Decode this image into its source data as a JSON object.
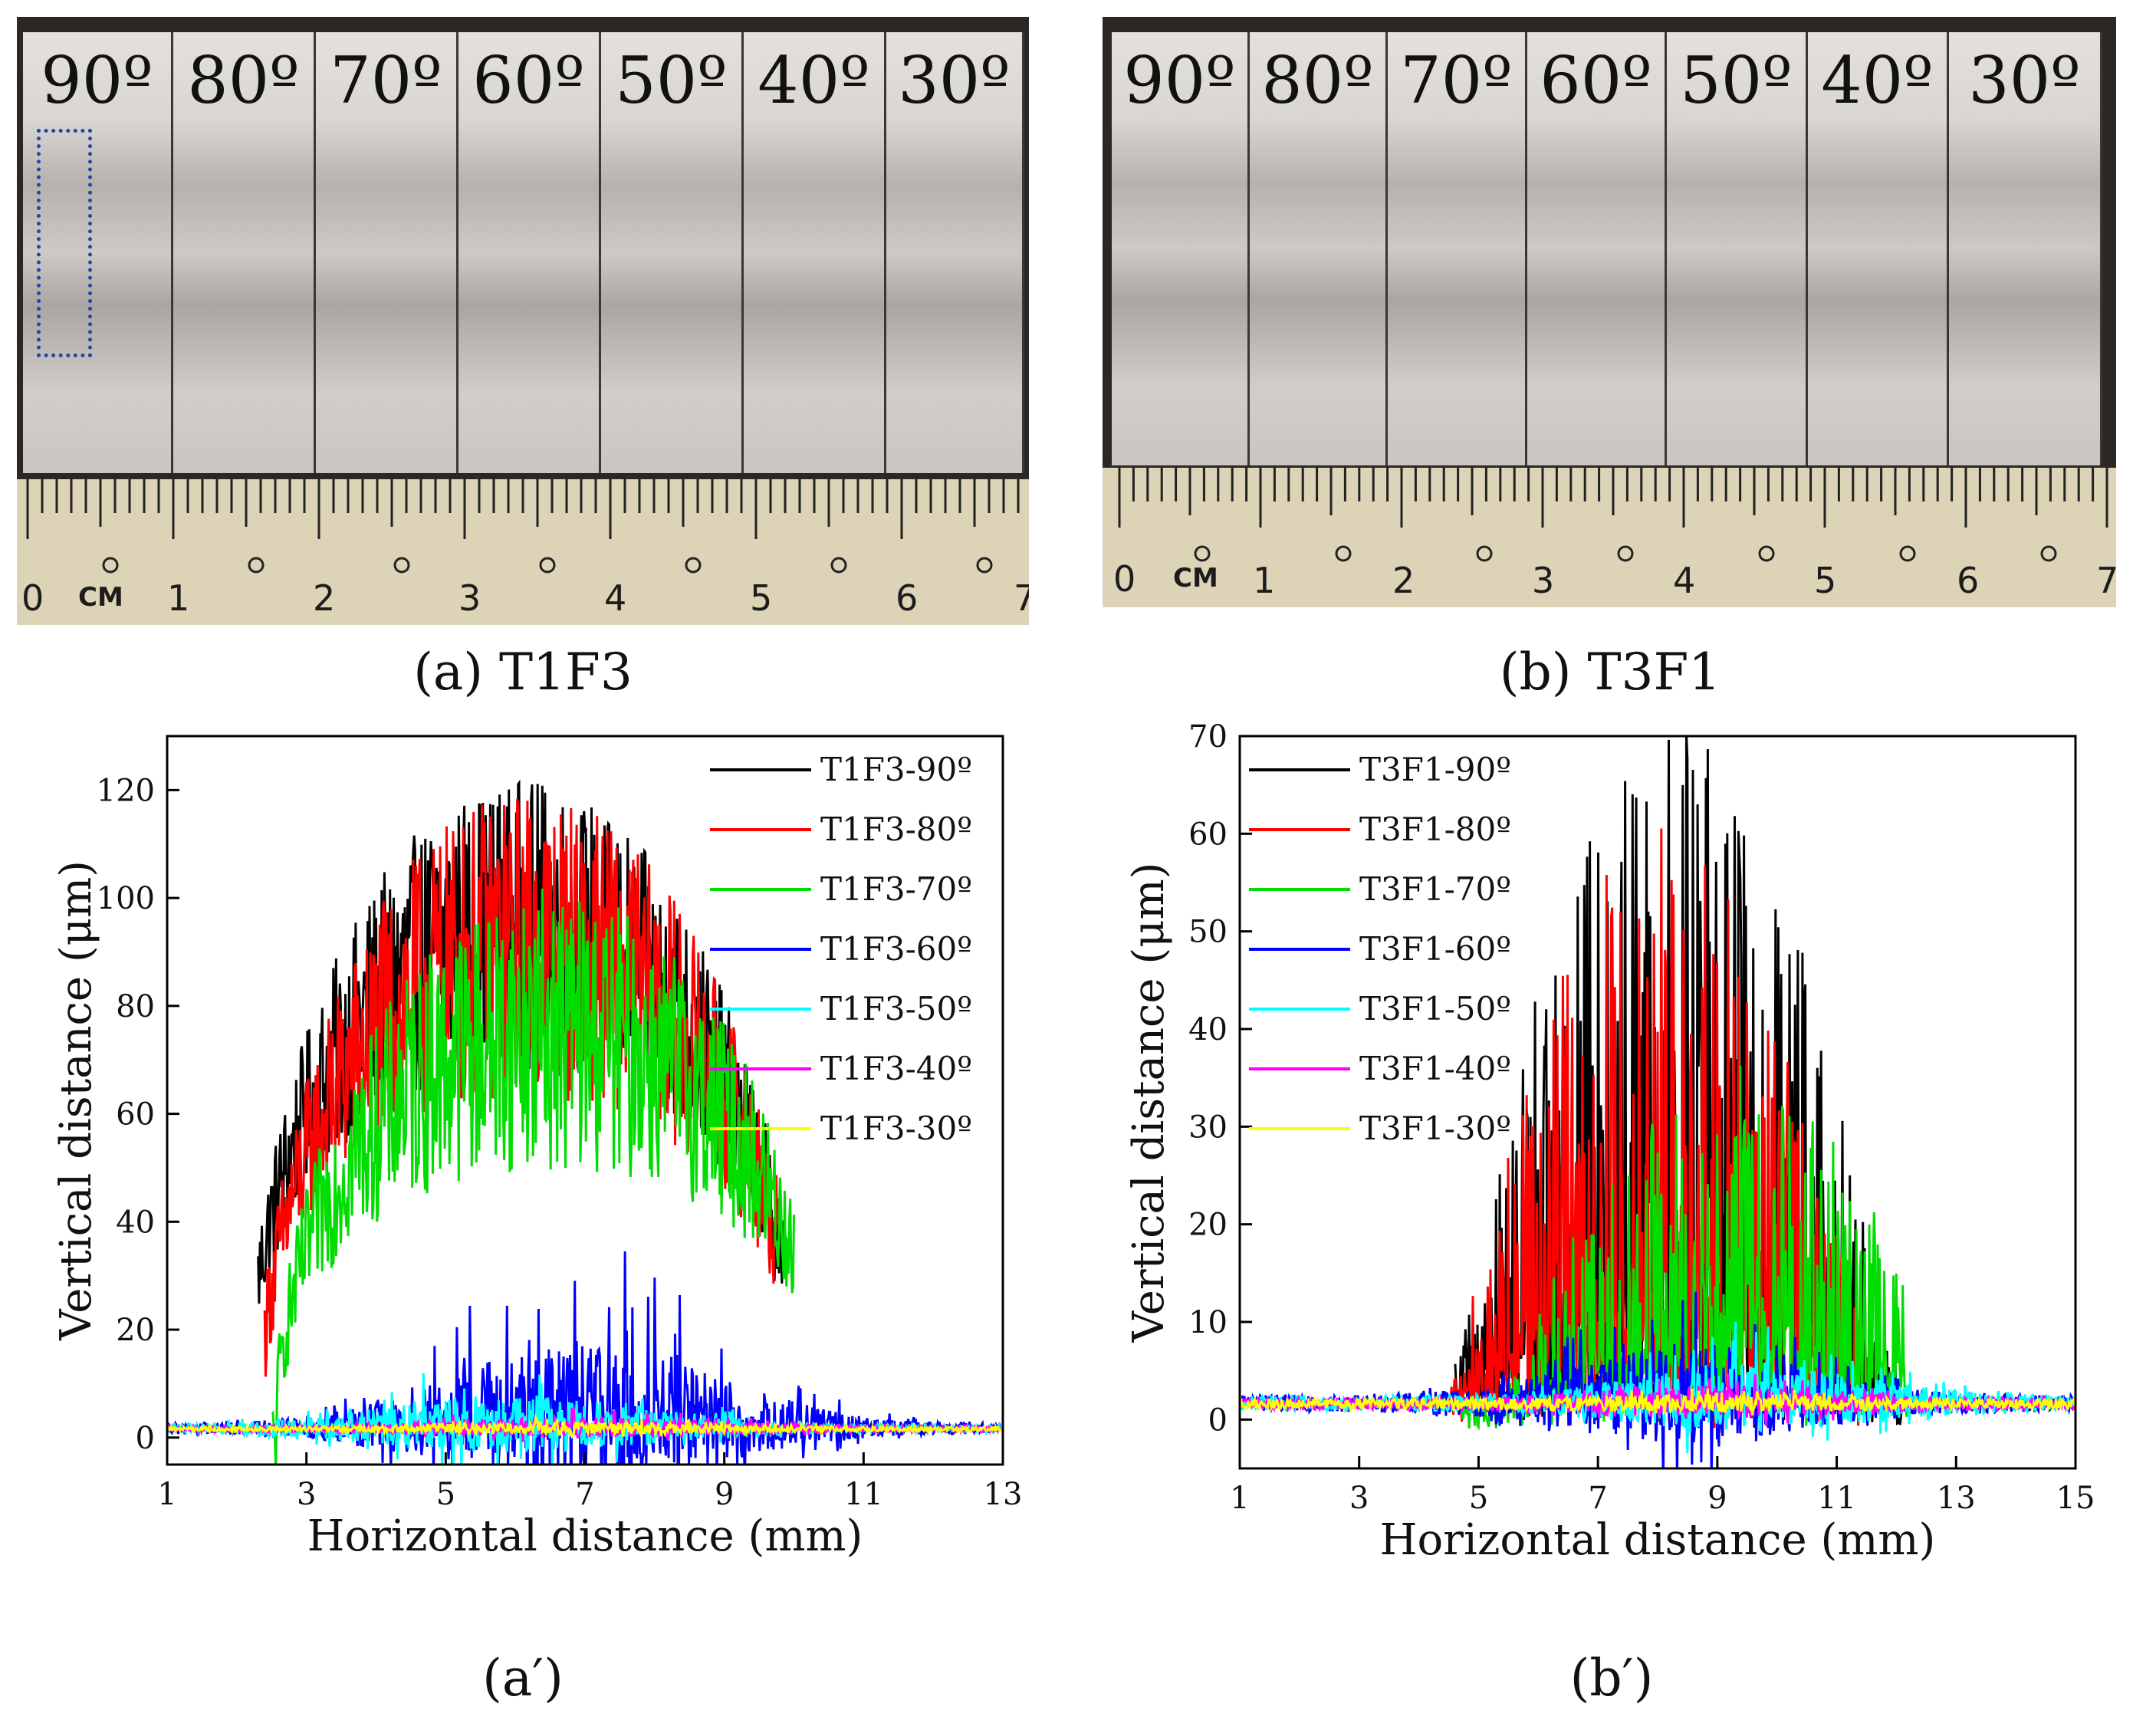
{
  "panels": {
    "a": {
      "caption": "(a) T1F3",
      "strip_labels": [
        "90º",
        "80º",
        "70º",
        "60º",
        "50º",
        "40º",
        "30º"
      ],
      "ruler_numbers": [
        "0",
        "1",
        "2",
        "3",
        "4",
        "5",
        "6",
        "7"
      ],
      "ruler_unit": "CM"
    },
    "b": {
      "caption": "(b) T3F1",
      "strip_labels": [
        "90º",
        "80º",
        "70º",
        "60º",
        "50º",
        "40º",
        "30º"
      ],
      "ruler_numbers": [
        "0",
        "1",
        "2",
        "3",
        "4",
        "5",
        "6",
        "7"
      ],
      "ruler_unit": "CM"
    }
  },
  "captions": {
    "a_prime": "(a′)",
    "b_prime": "(b′)"
  },
  "chart_data": [
    {
      "id": "a_prime",
      "type": "line",
      "xlabel": "Horizontal distance (mm)",
      "ylabel": "Vertical distance (μm)",
      "xlim": [
        1,
        13
      ],
      "ylim": [
        -5,
        130
      ],
      "xticks": [
        1,
        3,
        5,
        7,
        9,
        11,
        13
      ],
      "yticks": [
        0,
        20,
        40,
        60,
        80,
        100,
        120
      ],
      "legend": "top-right",
      "series": [
        {
          "name": "T1F3-90º",
          "color": "#000000",
          "range": [
            2.3,
            9.9
          ],
          "peak": 122,
          "center": 6.1,
          "noise": 0.45,
          "profile": "dome"
        },
        {
          "name": "T1F3-80º",
          "color": "#ff0000",
          "range": [
            2.4,
            9.8
          ],
          "peak": 117,
          "center": 6.2,
          "noise": 0.5,
          "profile": "dome"
        },
        {
          "name": "T1F3-70º",
          "color": "#00dd00",
          "range": [
            2.5,
            10.0
          ],
          "peak": 97,
          "center": 6.5,
          "noise": 0.55,
          "profile": "dome"
        },
        {
          "name": "T1F3-60º",
          "color": "#0000ff",
          "range": [
            1.0,
            13.0
          ],
          "peak": 33,
          "center": 7.0,
          "noise": 0.9,
          "profile": "low"
        },
        {
          "name": "T1F3-50º",
          "color": "#00ffff",
          "range": [
            1.0,
            13.0
          ],
          "peak": 16,
          "center": 6.0,
          "noise": 0.7,
          "profile": "low"
        },
        {
          "name": "T1F3-40º",
          "color": "#ff00ff",
          "range": [
            1.0,
            13.0
          ],
          "peak": 7,
          "center": 7.0,
          "noise": 0.5,
          "profile": "low"
        },
        {
          "name": "T1F3-30º",
          "color": "#ffff00",
          "range": [
            1.0,
            13.0
          ],
          "peak": 5,
          "center": 7.0,
          "noise": 0.4,
          "profile": "low"
        }
      ]
    },
    {
      "id": "b_prime",
      "type": "line",
      "xlabel": "Horizontal distance (mm)",
      "ylabel": "Vertical distance (μm)",
      "xlim": [
        1,
        15
      ],
      "ylim": [
        -5,
        70
      ],
      "xticks": [
        1,
        3,
        5,
        7,
        9,
        11,
        13,
        15
      ],
      "yticks": [
        0,
        10,
        20,
        30,
        40,
        50,
        60,
        70
      ],
      "legend": "top-left",
      "series": [
        {
          "name": "T3F1-90º",
          "color": "#000000",
          "range": [
            4.6,
            12.1
          ],
          "peak": 70,
          "center": 8.3,
          "noise": 0.9,
          "profile": "spiky"
        },
        {
          "name": "T3F1-80º",
          "color": "#ff0000",
          "range": [
            4.5,
            11.6
          ],
          "peak": 60,
          "center": 8.1,
          "noise": 0.9,
          "profile": "spiky"
        },
        {
          "name": "T3F1-70º",
          "color": "#00dd00",
          "range": [
            4.7,
            12.2
          ],
          "peak": 35,
          "center": 9.2,
          "noise": 0.9,
          "profile": "spiky"
        },
        {
          "name": "T3F1-60º",
          "color": "#0000ff",
          "range": [
            1.0,
            15.0
          ],
          "peak": 11,
          "center": 8.5,
          "noise": 0.9,
          "profile": "low"
        },
        {
          "name": "T3F1-50º",
          "color": "#00ffff",
          "range": [
            1.0,
            15.0
          ],
          "peak": 9,
          "center": 9.5,
          "noise": 0.8,
          "profile": "low"
        },
        {
          "name": "T3F1-40º",
          "color": "#ff00ff",
          "range": [
            1.0,
            15.0
          ],
          "peak": 5,
          "center": 9.0,
          "noise": 0.6,
          "profile": "low"
        },
        {
          "name": "T3F1-30º",
          "color": "#ffff00",
          "range": [
            1.0,
            15.0
          ],
          "peak": 3,
          "center": 9.0,
          "noise": 0.5,
          "profile": "low"
        }
      ]
    }
  ]
}
